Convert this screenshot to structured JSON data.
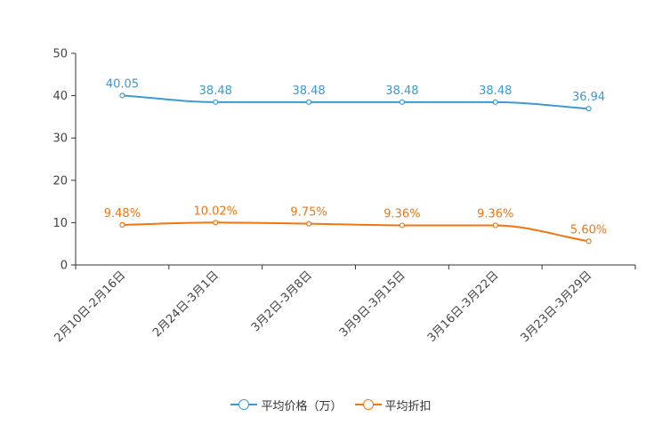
{
  "chart_data": {
    "type": "line",
    "categories": [
      "2月10日-2月16日",
      "2月24日-3月1日",
      "3月2日-3月8日",
      "3月9日-3月15日",
      "3月16日-3月22日",
      "3月23日-3月29日"
    ],
    "series": [
      {
        "name": "平均价格（万）",
        "color": "#3a9ad1",
        "values": [
          40.05,
          38.48,
          38.48,
          38.48,
          38.48,
          36.94
        ],
        "labels": [
          "40.05",
          "38.48",
          "38.48",
          "38.48",
          "38.48",
          "36.94"
        ]
      },
      {
        "name": "平均折扣",
        "color": "#f2750f",
        "values": [
          9.48,
          10.02,
          9.75,
          9.36,
          9.36,
          5.6
        ],
        "labels": [
          "9.48%",
          "10.02%",
          "9.75%",
          "9.36%",
          "9.36%",
          "5.60%"
        ]
      }
    ],
    "ylim": [
      0,
      50
    ],
    "yticks": [
      0,
      10,
      20,
      30,
      40,
      50
    ],
    "title": "",
    "xlabel": "",
    "ylabel": "",
    "grid": false,
    "legend_position": "bottom-center"
  },
  "legend": {
    "price_label": "平均价格（万）",
    "discount_label": "平均折扣"
  }
}
